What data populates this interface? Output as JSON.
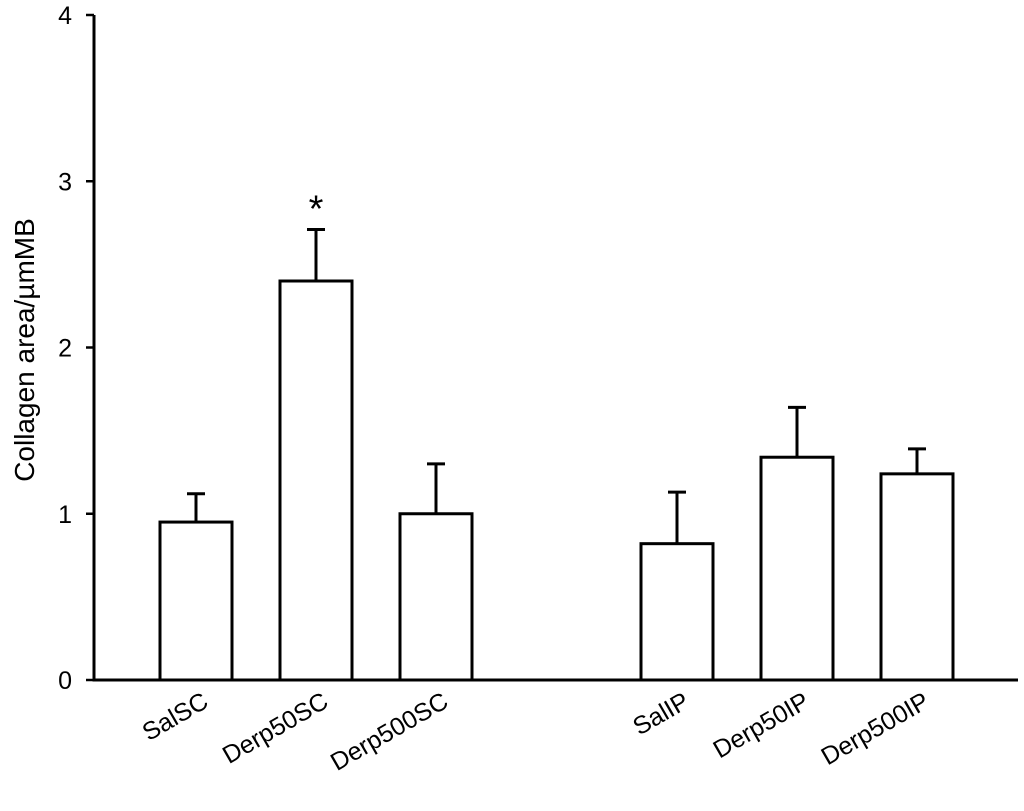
{
  "chart_data": {
    "type": "bar",
    "ylabel": "Collagen area/µmMB",
    "ylim": [
      0,
      4
    ],
    "yticks": [
      "0",
      "1",
      "2",
      "3",
      "4"
    ],
    "categories": [
      "SalSC",
      "Derp50SC",
      "Derp500SC",
      "SalIP",
      "Derp50IP",
      "Derp500IP"
    ],
    "values": [
      0.95,
      2.4,
      1.0,
      0.82,
      1.34,
      1.24
    ],
    "errors": [
      0.17,
      0.31,
      0.3,
      0.31,
      0.3,
      0.15
    ],
    "annotations": [
      {
        "category": "Derp50SC",
        "text": "*"
      }
    ],
    "grid": false,
    "legend": "none",
    "colors": {
      "bar_fill": "#ffffff",
      "stroke": "#000000"
    }
  }
}
